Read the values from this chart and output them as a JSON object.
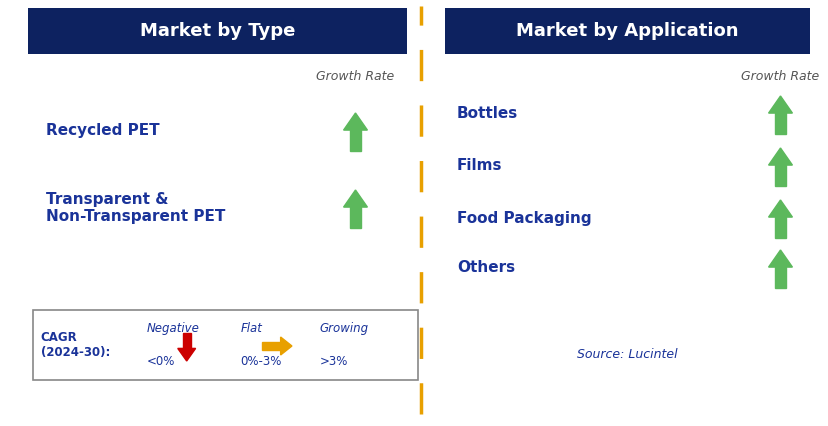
{
  "bg_color": "#ffffff",
  "header_color": "#0d2260",
  "header_text_color": "#ffffff",
  "label_color": "#1a3399",
  "growth_rate_color": "#555555",
  "arrow_up_color": "#5cb85c",
  "arrow_down_color": "#cc0000",
  "arrow_flat_color": "#e8a000",
  "dashed_line_color": "#e8a000",
  "left_header": "Market by Type",
  "right_header": "Market by Application",
  "growth_rate_label": "Growth Rate",
  "left_items": [
    "Recycled PET",
    "Transparent &\nNon-Transparent PET"
  ],
  "right_items": [
    "Bottles",
    "Films",
    "Food Packaging",
    "Others"
  ],
  "legend_title": "CAGR\n(2024-30):",
  "legend_items": [
    {
      "label": "Negative",
      "sublabel": "<0%",
      "arrow": "down",
      "color": "#cc0000"
    },
    {
      "label": "Flat",
      "sublabel": "0%-3%",
      "arrow": "flat",
      "color": "#e8a000"
    },
    {
      "label": "Growing",
      "sublabel": ">3%",
      "arrow": "up",
      "color": "#5cb85c"
    }
  ],
  "source_text": "Source: Lucintel"
}
